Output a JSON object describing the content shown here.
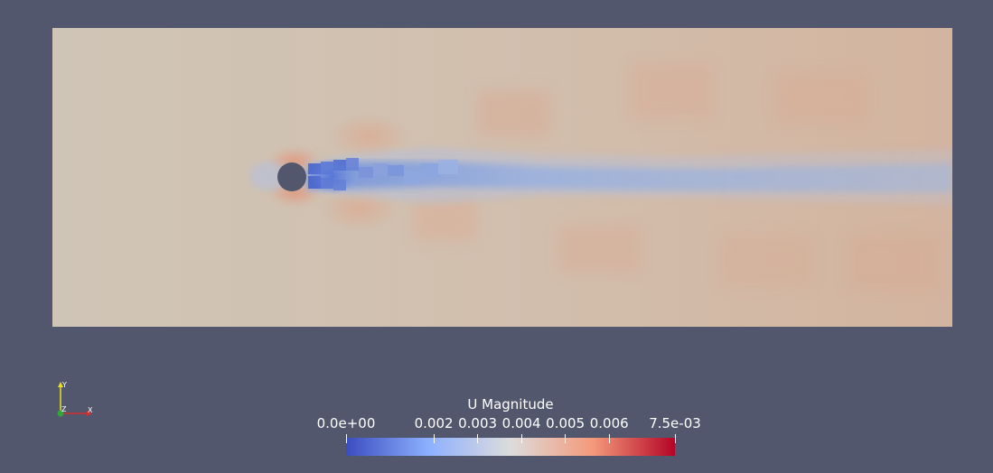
{
  "viewport": {
    "background": "#52576e",
    "field": "U Magnitude"
  },
  "colorbar": {
    "title": "U Magnitude",
    "colormap": "cool-to-warm",
    "colors": [
      "#3b4cc0",
      "#dddcdc",
      "#b40426"
    ],
    "range": [
      0.0,
      0.0075
    ],
    "tick_labels": [
      "0.0e+00",
      "0.002",
      "0.003",
      "0.004",
      "0.005",
      "0.006",
      "7.5e-03"
    ],
    "tick_values": [
      0.0,
      0.002,
      0.003,
      0.004,
      0.005,
      0.006,
      0.0075
    ]
  },
  "axes_triad": {
    "x_label": "X",
    "y_label": "Y",
    "z_label": "Z",
    "x_color": "#d62f2f",
    "y_color": "#e8e020",
    "z_color": "#2fa83a"
  }
}
